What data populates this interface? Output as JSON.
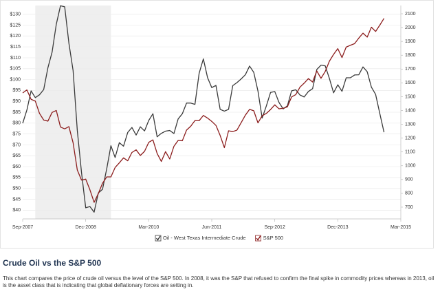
{
  "chart_data": {
    "type": "line",
    "x": [
      "2007-09",
      "2007-10",
      "2007-11",
      "2007-12",
      "2008-01",
      "2008-02",
      "2008-03",
      "2008-04",
      "2008-05",
      "2008-06",
      "2008-07",
      "2008-08",
      "2008-09",
      "2008-10",
      "2008-11",
      "2008-12",
      "2009-01",
      "2009-02",
      "2009-03",
      "2009-04",
      "2009-05",
      "2009-06",
      "2009-07",
      "2009-08",
      "2009-09",
      "2009-10",
      "2009-11",
      "2009-12",
      "2010-01",
      "2010-02",
      "2010-03",
      "2010-04",
      "2010-05",
      "2010-06",
      "2010-07",
      "2010-08",
      "2010-09",
      "2010-10",
      "2010-11",
      "2010-12",
      "2011-01",
      "2011-02",
      "2011-03",
      "2011-04",
      "2011-05",
      "2011-06",
      "2011-07",
      "2011-08",
      "2011-09",
      "2011-10",
      "2011-11",
      "2011-12",
      "2012-01",
      "2012-02",
      "2012-03",
      "2012-04",
      "2012-05",
      "2012-06",
      "2012-07",
      "2012-08",
      "2012-09",
      "2012-10",
      "2012-11",
      "2012-12",
      "2013-01",
      "2013-02",
      "2013-03",
      "2013-04",
      "2013-05",
      "2013-06",
      "2013-07",
      "2013-08",
      "2013-09",
      "2013-10",
      "2013-11",
      "2013-12",
      "2014-01",
      "2014-02",
      "2014-03",
      "2014-04",
      "2014-05",
      "2014-06",
      "2014-07",
      "2014-08",
      "2014-09",
      "2014-10",
      "2014-11"
    ],
    "series": [
      {
        "name": "Oil - West Texas Intermediate Crude",
        "color": "#3a3a3a",
        "axis": "y",
        "values": [
          79.9,
          86,
          94.8,
          91.7,
          93,
          95.4,
          105.4,
          112.6,
          125.4,
          133.9,
          133.4,
          116.7,
          104.1,
          76.6,
          57.3,
          41.1,
          41.7,
          39.1,
          47.9,
          49.6,
          59,
          69.6,
          64.2,
          71,
          69.4,
          75.7,
          78,
          74.5,
          78.3,
          76.4,
          81.2,
          84.3,
          73.7,
          75.3,
          76.3,
          76.6,
          75.2,
          81.9,
          84.3,
          89.2,
          89.2,
          88.6,
          102.9,
          109.5,
          100.9,
          96.3,
          97.3,
          86.3,
          85.5,
          86.3,
          97.2,
          98.6,
          100.3,
          102.2,
          106.2,
          103.3,
          94.7,
          82.3,
          87.9,
          94.1,
          94.5,
          89.5,
          86.5,
          87.9,
          94.8,
          95.3,
          92.9,
          92,
          94.5,
          95.8,
          104.6,
          106.6,
          106.3,
          100.5,
          93.9,
          97.6,
          94.6,
          100.8,
          100.8,
          102.1,
          102.2,
          105.8,
          103.6,
          96.5,
          93.2,
          84.4,
          75.8
        ]
      },
      {
        "name": "S&P 500",
        "color": "#8b1c1c",
        "axis": "y2",
        "values": [
          1527,
          1549,
          1481,
          1468,
          1379,
          1331,
          1323,
          1386,
          1400,
          1280,
          1267,
          1283,
          1166,
          969,
          896,
          903,
          826,
          735,
          798,
          873,
          919,
          919,
          987,
          1021,
          1057,
          1036,
          1096,
          1115,
          1074,
          1104,
          1169,
          1187,
          1089,
          1031,
          1102,
          1049,
          1141,
          1183,
          1181,
          1258,
          1286,
          1327,
          1326,
          1364,
          1345,
          1321,
          1292,
          1219,
          1131,
          1253,
          1247,
          1258,
          1312,
          1366,
          1408,
          1398,
          1310,
          1362,
          1379,
          1407,
          1441,
          1412,
          1416,
          1426,
          1498,
          1515,
          1569,
          1598,
          1631,
          1606,
          1686,
          1633,
          1682,
          1757,
          1806,
          1848,
          1783,
          1859,
          1872,
          1884,
          1924,
          1960,
          1931,
          2003,
          1972,
          2018,
          2067
        ]
      }
    ],
    "shaded_range": [
      "2007-12",
      "2009-06"
    ],
    "xlim": [
      "2007-09",
      "2015-03"
    ],
    "xticks": [
      {
        "value": "2007-09",
        "label": "Sep-2007"
      },
      {
        "value": "2008-12",
        "label": "Dec-2008"
      },
      {
        "value": "2010-03",
        "label": "Mar-2010"
      },
      {
        "value": "2011-06",
        "label": "Jun-2011"
      },
      {
        "value": "2012-09",
        "label": "Sep-2012"
      },
      {
        "value": "2013-12",
        "label": "Dec-2013"
      },
      {
        "value": "2015-03",
        "label": "Mar-2015"
      }
    ],
    "ylim": [
      36,
      134
    ],
    "yticks": [
      {
        "value": 40,
        "label": "$40"
      },
      {
        "value": 45,
        "label": "$45"
      },
      {
        "value": 50,
        "label": "$50"
      },
      {
        "value": 55,
        "label": "$55"
      },
      {
        "value": 60,
        "label": "$60"
      },
      {
        "value": 65,
        "label": "$65"
      },
      {
        "value": 70,
        "label": "$70"
      },
      {
        "value": 75,
        "label": "$75"
      },
      {
        "value": 80,
        "label": "$80"
      },
      {
        "value": 85,
        "label": "$85"
      },
      {
        "value": 90,
        "label": "$90"
      },
      {
        "value": 95,
        "label": "$95"
      },
      {
        "value": 100,
        "label": "$100"
      },
      {
        "value": 105,
        "label": "$105"
      },
      {
        "value": 110,
        "label": "$110"
      },
      {
        "value": 115,
        "label": "$115"
      },
      {
        "value": 120,
        "label": "$120"
      },
      {
        "value": 125,
        "label": "$125"
      },
      {
        "value": 130,
        "label": "$130"
      }
    ],
    "y2lim": [
      615,
      2160
    ],
    "y2ticks": [
      700,
      800,
      900,
      1000,
      1100,
      1200,
      1300,
      1400,
      1500,
      1600,
      1700,
      1800,
      1900,
      2000,
      2100
    ],
    "grid": true,
    "legend": "bottom"
  },
  "caption": {
    "title": "Crude Oil vs the S&P 500",
    "text": "This chart compares the price of crude oil versus the level of the S&P 500. In 2008, it was the S&P that refused to confirm the final spike in commodity prices whereas in 2013, oil is the asset class that is indicating that global deflationary forces are setting in."
  }
}
